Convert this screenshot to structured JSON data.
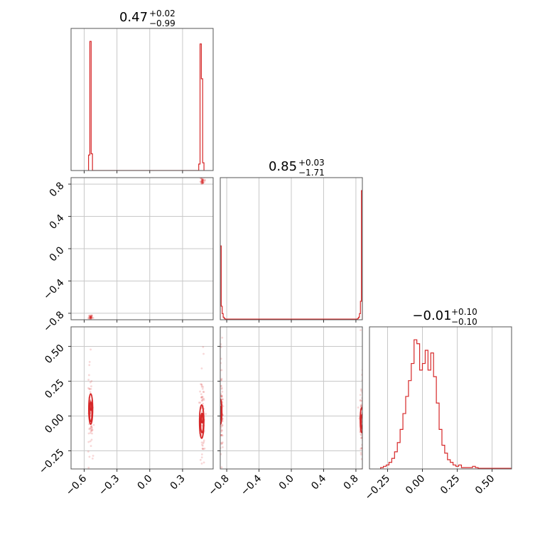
{
  "chart_data": {
    "type": "corner",
    "color": "#d62728",
    "params": [
      {
        "title": {
          "median": "0.47",
          "plus": "+0.02",
          "minus": "−0.99"
        },
        "range": [
          -0.72,
          0.58
        ],
        "ticks": [
          -0.6,
          -0.3,
          0.0,
          0.3
        ],
        "tick_labels": [
          "−0.6",
          "−0.3",
          "0.0",
          "0.3"
        ]
      },
      {
        "title": {
          "median": "0.85",
          "plus": "+0.03",
          "minus": "−1.71"
        },
        "range": [
          -0.88,
          0.88
        ],
        "ticks": [
          -0.8,
          -0.4,
          0.0,
          0.4,
          0.8
        ],
        "tick_labels": [
          "−0.8",
          "−0.4",
          "0.0",
          "0.4",
          "0.8"
        ]
      },
      {
        "title": {
          "median": "−0.01",
          "plus": "+0.10",
          "minus": "−0.10"
        },
        "range": [
          -0.38,
          0.64
        ],
        "ticks": [
          -0.25,
          0.0,
          0.25,
          0.5
        ],
        "tick_labels": [
          "−0.25",
          "0.00",
          "0.25",
          "0.50"
        ]
      }
    ],
    "histograms": [
      {
        "param": 0,
        "bin_edges": [
          -0.56,
          -0.548,
          -0.536,
          -0.524,
          -0.512,
          0.448,
          0.46,
          0.472,
          0.484,
          0.496
        ],
        "counts": [
          0.12,
          1.0,
          0.13,
          0,
          0,
          0.05,
          0.98,
          0.71,
          0.06
        ]
      },
      {
        "param": 1,
        "bin_edges": [
          -0.88,
          -0.868,
          -0.856,
          -0.844,
          -0.832,
          -0.82,
          0.82,
          0.832,
          0.844,
          0.856,
          0.868,
          0.88
        ],
        "counts": [
          0.6,
          0.11,
          0.05,
          0.02,
          0.01,
          0.005,
          0.01,
          0.02,
          0.05,
          0.15,
          1.05
        ]
      },
      {
        "param": 2,
        "bin_edges": [
          -0.3,
          -0.28,
          -0.26,
          -0.24,
          -0.22,
          -0.2,
          -0.18,
          -0.16,
          -0.14,
          -0.12,
          -0.1,
          -0.08,
          -0.06,
          -0.04,
          -0.02,
          0.0,
          0.02,
          0.04,
          0.06,
          0.08,
          0.1,
          0.12,
          0.14,
          0.16,
          0.18,
          0.2,
          0.22,
          0.24,
          0.26,
          0.28,
          0.3,
          0.32,
          0.34,
          0.36,
          0.38,
          0.4,
          0.42,
          0.44,
          0.46,
          0.48,
          0.5,
          0.52,
          0.54,
          0.56,
          0.58,
          0.6,
          0.62,
          0.64
        ],
        "counts": [
          0.01,
          0.02,
          0.03,
          0.05,
          0.08,
          0.13,
          0.2,
          0.3,
          0.42,
          0.55,
          0.67,
          0.8,
          0.98,
          0.95,
          0.75,
          0.8,
          0.9,
          0.75,
          0.88,
          0.7,
          0.5,
          0.3,
          0.18,
          0.12,
          0.07,
          0.05,
          0.03,
          0.02,
          0.03,
          0.01,
          0.01,
          0.01,
          0.01,
          0.02,
          0.01,
          0.005,
          0.005,
          0.005,
          0.005,
          0.005,
          0.005,
          0.005,
          0.005,
          0.005,
          0.005,
          0.005,
          0.005
        ]
      }
    ],
    "scatter_2d": [
      {
        "x_param": 0,
        "y_param": 1,
        "clusters": [
          {
            "x": -0.54,
            "y": -0.85,
            "sx": 0.008,
            "sy": 0.012,
            "n": 40
          },
          {
            "x": 0.48,
            "y": 0.84,
            "sx": 0.01,
            "sy": 0.02,
            "n": 45
          }
        ]
      },
      {
        "x_param": 0,
        "y_param": 2,
        "clusters": [
          {
            "x": -0.54,
            "y": 0.04,
            "sx": 0.01,
            "sy": 0.12,
            "n": 90
          },
          {
            "x": 0.48,
            "y": -0.04,
            "sx": 0.012,
            "sy": 0.13,
            "n": 90
          }
        ],
        "contours": [
          {
            "cx": -0.54,
            "cy": 0.05,
            "rx": 0.018,
            "ry": 0.11
          },
          {
            "cx": -0.54,
            "cy": 0.03,
            "rx": 0.012,
            "ry": 0.07
          },
          {
            "cx": -0.538,
            "cy": 0.07,
            "rx": 0.007,
            "ry": 0.03
          },
          {
            "cx": 0.475,
            "cy": -0.04,
            "rx": 0.02,
            "ry": 0.12
          },
          {
            "cx": 0.478,
            "cy": -0.05,
            "rx": 0.013,
            "ry": 0.07
          },
          {
            "cx": 0.478,
            "cy": -0.02,
            "rx": 0.007,
            "ry": 0.03
          }
        ]
      },
      {
        "x_param": 1,
        "y_param": 2,
        "clusters": [
          {
            "x": -0.87,
            "y": 0.02,
            "sx": 0.012,
            "sy": 0.13,
            "n": 90
          },
          {
            "x": 0.87,
            "y": -0.03,
            "sx": 0.012,
            "sy": 0.13,
            "n": 90
          }
        ],
        "contours": [
          {
            "cx": -0.878,
            "cy": 0.03,
            "rx": 0.018,
            "ry": 0.09
          },
          {
            "cx": -0.878,
            "cy": 0.02,
            "rx": 0.01,
            "ry": 0.05
          },
          {
            "cx": 0.872,
            "cy": -0.03,
            "rx": 0.018,
            "ry": 0.09
          },
          {
            "cx": 0.874,
            "cy": -0.04,
            "rx": 0.01,
            "ry": 0.05
          }
        ]
      }
    ]
  }
}
